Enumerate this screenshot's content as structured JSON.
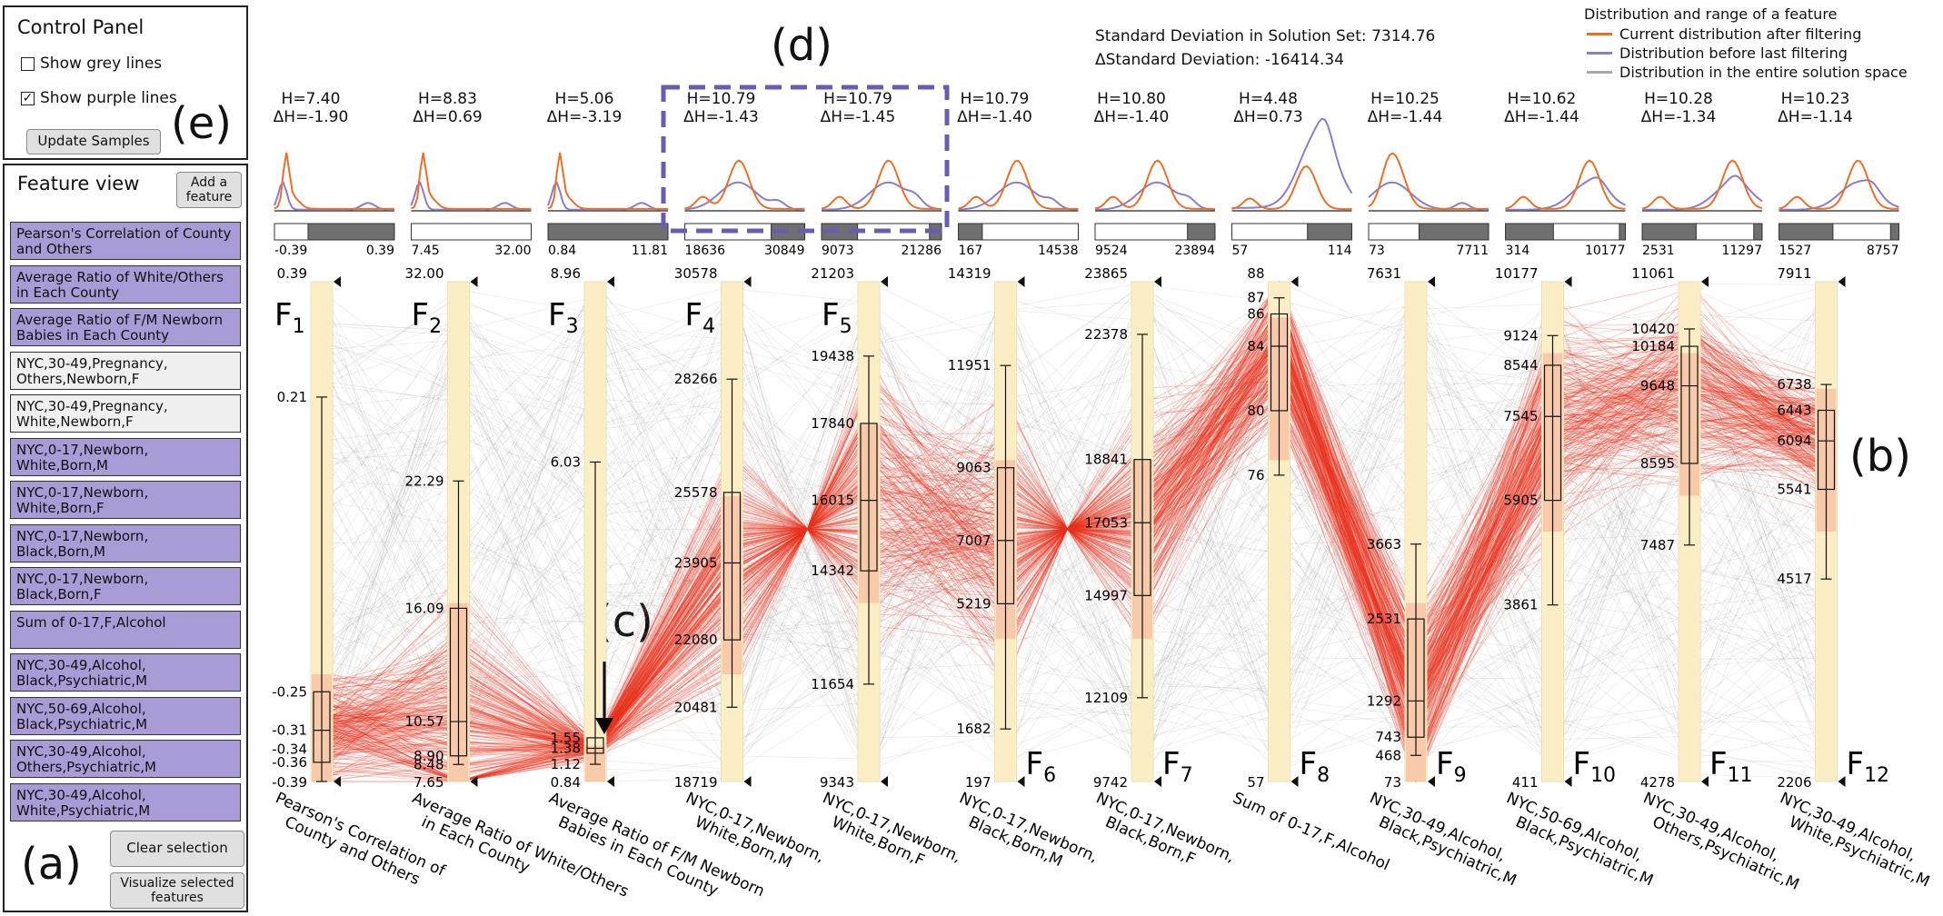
{
  "control_panel": {
    "title": "Control Panel",
    "show_grey_lines": {
      "label": "Show grey lines",
      "checked": false
    },
    "show_purple_lines": {
      "label": "Show purple lines",
      "checked": true
    },
    "update_button": "Update Samples"
  },
  "feature_view": {
    "title": "Feature view",
    "add_button": "Add a feature",
    "items": [
      {
        "label": "Pearson's Correlation of County and Others",
        "selected": true
      },
      {
        "label": "Average Ratio of White/Others in Each County",
        "selected": true
      },
      {
        "label": "Average Ratio of F/M Newborn Babies in Each County",
        "selected": true
      },
      {
        "label": "NYC,30-49,Pregnancy, Others,Newborn,F",
        "selected": false
      },
      {
        "label": "NYC,30-49,Pregnancy, White,Newborn,F",
        "selected": false
      },
      {
        "label": "NYC,0-17,Newborn, White,Born,M",
        "selected": true
      },
      {
        "label": "NYC,0-17,Newborn, White,Born,F",
        "selected": true
      },
      {
        "label": "NYC,0-17,Newborn, Black,Born,M",
        "selected": true
      },
      {
        "label": "NYC,0-17,Newborn, Black,Born,F",
        "selected": true
      },
      {
        "label": "Sum of 0-17,F,Alcohol",
        "selected": true
      },
      {
        "label": "NYC,30-49,Alcohol, Black,Psychiatric,M",
        "selected": true
      },
      {
        "label": "NYC,50-69,Alcohol, Black,Psychiatric,M",
        "selected": true
      },
      {
        "label": "NYC,30-49,Alcohol, Others,Psychiatric,M",
        "selected": true
      },
      {
        "label": "NYC,30-49,Alcohol, White,Psychiatric,M",
        "selected": true
      }
    ],
    "clear_button": "Clear selection",
    "visualize_button": "Visualize selected features"
  },
  "annotations": {
    "a": "(a)",
    "b": "(b)",
    "c": "(c)",
    "d": "(d)",
    "e": "(e)"
  },
  "stats": {
    "std_line": "Standard Deviation in Solution Set: 7314.76",
    "delta_std_line": "ΔStandard Deviation: -16414.34"
  },
  "legend": {
    "title": "Distribution and range of a feature",
    "items": [
      {
        "label": "Current distribution after filtering",
        "color": "#e8702a"
      },
      {
        "label": "Distribution before last filtering",
        "color": "#8c7cc9"
      },
      {
        "label": "Distribution in the entire solution space",
        "color": "#a8a8a8"
      }
    ]
  },
  "colors": {
    "filtered_line": "#e8321e",
    "context_line": "#9a9a9a",
    "axis_fill": "#fdf6cf",
    "current_dist": "#e8702a",
    "previous_dist": "#8c7cc9",
    "selection_box": "#6b5bb5"
  },
  "axes": [
    {
      "id": "F1",
      "sub": "1",
      "H": "H=7.40",
      "dH": "ΔH=-1.90",
      "range_min": "-0.39",
      "range_max": "0.39",
      "slider": [
        0.0,
        0.28
      ],
      "min": -0.39,
      "max": 0.39,
      "top_label": "0.39",
      "bottom_label": "-0.39",
      "ticks": [
        {
          "v": 0.21,
          "t": "0.21"
        },
        {
          "v": -0.25,
          "t": "-0.25"
        },
        {
          "v": -0.31,
          "t": "-0.31"
        },
        {
          "v": -0.34,
          "t": "-0.34"
        },
        {
          "v": -0.36,
          "t": "-0.36"
        }
      ],
      "box": {
        "min": -0.39,
        "q1": -0.36,
        "med": -0.31,
        "q3": -0.25,
        "max": 0.21
      },
      "label": "Pearson's Correlation of\nCounty and Others"
    },
    {
      "id": "F2",
      "sub": "2",
      "H": "H=8.83",
      "dH": "ΔH=0.69",
      "range_min": "7.45",
      "range_max": "32.00",
      "slider": [
        0.0,
        1.0
      ],
      "min": 7.65,
      "max": 32.0,
      "top_label": "32.00",
      "bottom_label": "7.65",
      "ticks": [
        {
          "v": 22.29,
          "t": "22.29"
        },
        {
          "v": 16.09,
          "t": "16.09"
        },
        {
          "v": 10.57,
          "t": "10.57"
        },
        {
          "v": 8.9,
          "t": "8.90"
        },
        {
          "v": 8.48,
          "t": "8.48"
        }
      ],
      "box": {
        "min": 8.48,
        "q1": 8.9,
        "med": 10.57,
        "q3": 16.09,
        "max": 22.29
      },
      "label": "Average Ratio of White/Others\nin Each County"
    },
    {
      "id": "F3",
      "sub": "3",
      "H": "H=5.06",
      "dH": "ΔH=-3.19",
      "range_min": "0.84",
      "range_max": "11.81",
      "slider": [
        0.0,
        0.0
      ],
      "min": 0.84,
      "max": 8.96,
      "top_label": "8.96",
      "bottom_label": "0.84",
      "ticks": [
        {
          "v": 6.03,
          "t": "6.03"
        },
        {
          "v": 1.55,
          "t": "1.55"
        },
        {
          "v": 1.38,
          "t": "1.38"
        },
        {
          "v": 1.12,
          "t": "1.12"
        }
      ],
      "box": {
        "min": 1.12,
        "q1": 1.3,
        "med": 1.38,
        "q3": 1.55,
        "max": 6.03
      },
      "label": "Average Ratio of F/M Newborn\nBabies in Each County"
    },
    {
      "id": "F4",
      "sub": "4",
      "H": "H=10.79",
      "dH": "ΔH=-1.43",
      "range_min": "18636",
      "range_max": "30849",
      "slider": [
        0.0,
        0.72
      ],
      "min": 18719,
      "max": 30578,
      "top_label": "30578",
      "bottom_label": "18719",
      "ticks": [
        {
          "v": 28266,
          "t": "28266"
        },
        {
          "v": 25578,
          "t": "25578"
        },
        {
          "v": 23905,
          "t": "23905"
        },
        {
          "v": 22080,
          "t": "22080"
        },
        {
          "v": 20481,
          "t": "20481"
        }
      ],
      "box": {
        "min": 20481,
        "q1": 22080,
        "med": 23905,
        "q3": 25578,
        "max": 28266
      },
      "label": "NYC,0-17,Newborn,\nWhite,Born,M"
    },
    {
      "id": "F5",
      "sub": "5",
      "H": "H=10.79",
      "dH": "ΔH=-1.45",
      "range_min": "9073",
      "range_max": "21286",
      "slider": [
        0.3,
        0.9
      ],
      "min": 9343,
      "max": 21203,
      "top_label": "21203",
      "bottom_label": "9343",
      "ticks": [
        {
          "v": 19438,
          "t": "19438"
        },
        {
          "v": 17840,
          "t": "17840"
        },
        {
          "v": 16015,
          "t": "16015"
        },
        {
          "v": 14342,
          "t": "14342"
        },
        {
          "v": 11654,
          "t": "11654"
        }
      ],
      "box": {
        "min": 11654,
        "q1": 14342,
        "med": 16015,
        "q3": 17840,
        "max": 19438
      },
      "label": "NYC,0-17,Newborn,\nWhite,Born,F"
    },
    {
      "id": "F6",
      "sub": "6",
      "H": "H=10.79",
      "dH": "ΔH=-1.40",
      "range_min": "167",
      "range_max": "14538",
      "slider": [
        0.2,
        1.0
      ],
      "min": 197,
      "max": 14319,
      "top_label": "14319",
      "bottom_label": "197",
      "ticks": [
        {
          "v": 11951,
          "t": "11951"
        },
        {
          "v": 9063,
          "t": "9063"
        },
        {
          "v": 7007,
          "t": "7007"
        },
        {
          "v": 5219,
          "t": "5219"
        },
        {
          "v": 1682,
          "t": "1682"
        }
      ],
      "box": {
        "min": 1682,
        "q1": 5219,
        "med": 7007,
        "q3": 9063,
        "max": 11951
      },
      "label": "NYC,0-17,Newborn,\nBlack,Born,M"
    },
    {
      "id": "F7",
      "sub": "7",
      "H": "H=10.80",
      "dH": "ΔH=-1.40",
      "range_min": "9524",
      "range_max": "23894",
      "slider": [
        0.0,
        0.77
      ],
      "min": 9742,
      "max": 23865,
      "top_label": "23865",
      "bottom_label": "9742",
      "ticks": [
        {
          "v": 22378,
          "t": "22378"
        },
        {
          "v": 18841,
          "t": "18841"
        },
        {
          "v": 17053,
          "t": "17053"
        },
        {
          "v": 14997,
          "t": "14997"
        },
        {
          "v": 12109,
          "t": "12109"
        }
      ],
      "box": {
        "min": 12109,
        "q1": 14997,
        "med": 17053,
        "q3": 18841,
        "max": 22378
      },
      "label": "NYC,0-17,Newborn,\nBlack,Born,F"
    },
    {
      "id": "F8",
      "sub": "8",
      "H": "H=4.48",
      "dH": "ΔH=0.73",
      "range_min": "57",
      "range_max": "114",
      "slider": [
        0.0,
        0.63
      ],
      "min": 57,
      "max": 88,
      "top_label": "88",
      "bottom_label": "57",
      "ticks": [
        {
          "v": 87,
          "t": "87"
        },
        {
          "v": 86,
          "t": "86"
        },
        {
          "v": 84,
          "t": "84"
        },
        {
          "v": 80,
          "t": "80"
        },
        {
          "v": 76,
          "t": "76"
        }
      ],
      "box": {
        "min": 76,
        "q1": 80,
        "med": 84,
        "q3": 86,
        "max": 87
      },
      "label": "Sum of 0-17,F,Alcohol"
    },
    {
      "id": "F9",
      "sub": "9",
      "H": "H=10.25",
      "dH": "ΔH=-1.44",
      "range_min": "73",
      "range_max": "7711",
      "slider": [
        0.0,
        0.42
      ],
      "min": 73,
      "max": 7631,
      "top_label": "7631",
      "bottom_label": "73",
      "ticks": [
        {
          "v": 3663,
          "t": "3663"
        },
        {
          "v": 2531,
          "t": "2531"
        },
        {
          "v": 1292,
          "t": "1292"
        },
        {
          "v": 743,
          "t": "743"
        },
        {
          "v": 468,
          "t": "468"
        }
      ],
      "box": {
        "min": 468,
        "q1": 743,
        "med": 1292,
        "q3": 2531,
        "max": 3663
      },
      "label": "NYC,30-49,Alcohol,\nBlack,Psychiatric,M"
    },
    {
      "id": "F10",
      "sub": "10",
      "H": "H=10.62",
      "dH": "ΔH=-1.44",
      "range_min": "314",
      "range_max": "10177",
      "slider": [
        0.4,
        0.95
      ],
      "min": 411,
      "max": 10177,
      "top_label": "10177",
      "bottom_label": "411",
      "ticks": [
        {
          "v": 9124,
          "t": "9124"
        },
        {
          "v": 8544,
          "t": "8544"
        },
        {
          "v": 7545,
          "t": "7545"
        },
        {
          "v": 5905,
          "t": "5905"
        },
        {
          "v": 3861,
          "t": "3861"
        }
      ],
      "box": {
        "min": 3861,
        "q1": 5905,
        "med": 7545,
        "q3": 8544,
        "max": 9124
      },
      "label": "NYC,50-69,Alcohol,\nBlack,Psychiatric,M"
    },
    {
      "id": "F11",
      "sub": "11",
      "H": "H=10.28",
      "dH": "ΔH=-1.34",
      "range_min": "2531",
      "range_max": "11297",
      "slider": [
        0.45,
        0.93
      ],
      "min": 4278,
      "max": 11061,
      "top_label": "11061",
      "bottom_label": "4278",
      "ticks": [
        {
          "v": 10420,
          "t": "10420"
        },
        {
          "v": 10184,
          "t": "10184"
        },
        {
          "v": 9648,
          "t": "9648"
        },
        {
          "v": 8595,
          "t": "8595"
        },
        {
          "v": 7487,
          "t": "7487"
        }
      ],
      "box": {
        "min": 7487,
        "q1": 8595,
        "med": 9648,
        "q3": 10184,
        "max": 10420
      },
      "label": "NYC,30-49,Alcohol,\nOthers,Psychiatric,M"
    },
    {
      "id": "F12",
      "sub": "12",
      "H": "H=10.23",
      "dH": "ΔH=-1.14",
      "range_min": "1527",
      "range_max": "8757",
      "slider": [
        0.45,
        0.93
      ],
      "min": 2206,
      "max": 7911,
      "top_label": "7911",
      "bottom_label": "2206",
      "ticks": [
        {
          "v": 6738,
          "t": "6738"
        },
        {
          "v": 6443,
          "t": "6443"
        },
        {
          "v": 6094,
          "t": "6094"
        },
        {
          "v": 5541,
          "t": "5541"
        },
        {
          "v": 4517,
          "t": "4517"
        }
      ],
      "box": {
        "min": 4517,
        "q1": 5541,
        "med": 6094,
        "q3": 6443,
        "max": 6738
      },
      "label": "NYC,30-49,Alcohol,\nWhite,Psychiatric,M"
    }
  ]
}
